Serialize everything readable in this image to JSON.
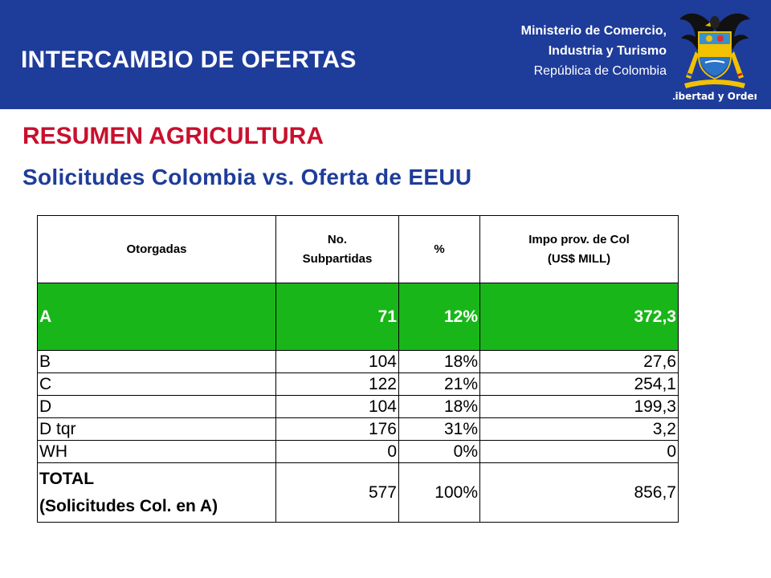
{
  "header": {
    "title": "INTERCAMBIO DE OFERTAS",
    "ministry_line1": "Ministerio de Comercio,",
    "ministry_line2": "Industria y Turismo",
    "ministry_line3": "República de Colombia",
    "crest_motto": "Libertad y Orden",
    "colors": {
      "header_bg": "#1e3c9a",
      "highlight_row": "#19b619",
      "title_red": "#c8102e"
    }
  },
  "main": {
    "title": "RESUMEN AGRICULTURA",
    "subtitle": "Solicitudes Colombia vs. Oferta de EEUU"
  },
  "table": {
    "headers": {
      "col1": "Otorgadas",
      "col2_line1": "No.",
      "col2_line2": "Subpartidas",
      "col3": "%",
      "col4_line1": "Impo prov. de Col",
      "col4_line2": "(US$ MILL)"
    },
    "rows": [
      {
        "label": "A",
        "count": "71",
        "pct": "12%",
        "value": "372,3"
      },
      {
        "label": "B",
        "count": "104",
        "pct": "18%",
        "value": "27,6"
      },
      {
        "label": "C",
        "count": "122",
        "pct": "21%",
        "value": "254,1"
      },
      {
        "label": "D",
        "count": "104",
        "pct": "18%",
        "value": "199,3"
      },
      {
        "label": "D tqr",
        "count": "176",
        "pct": "31%",
        "value": "3,2"
      },
      {
        "label": "WH",
        "count": "0",
        "pct": "0%",
        "value": "0"
      }
    ],
    "total": {
      "label_line1": "TOTAL",
      "label_line2": "(Solicitudes Col. en A)",
      "count": "577",
      "pct": "100%",
      "value": "856,7"
    }
  }
}
